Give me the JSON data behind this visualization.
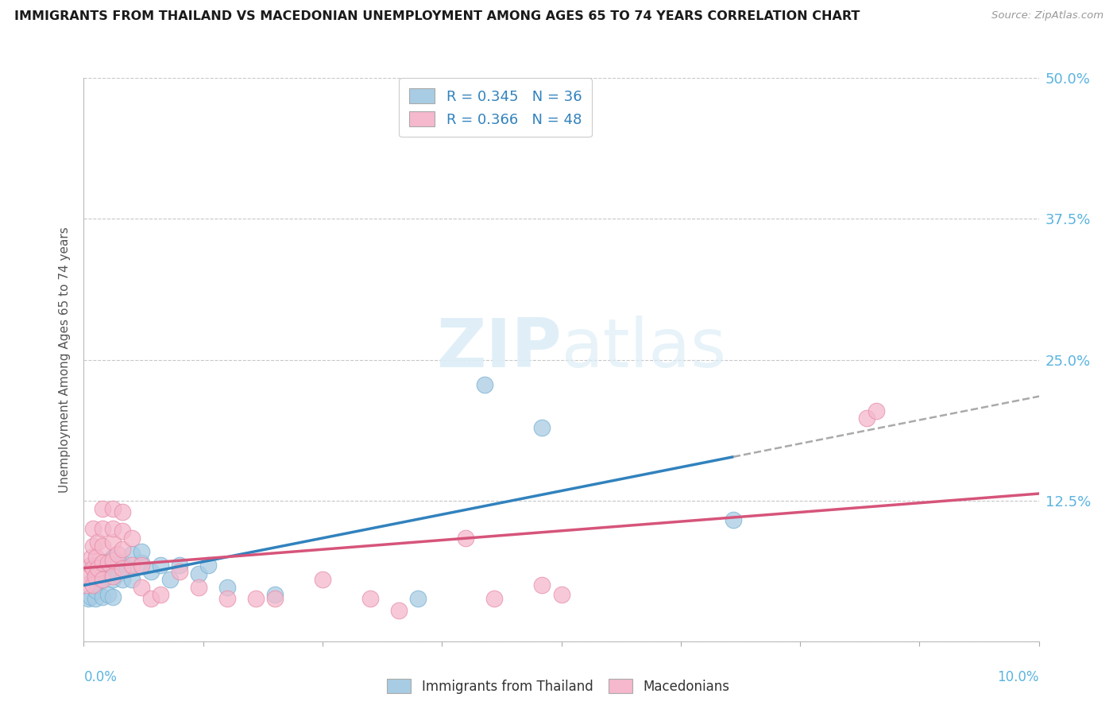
{
  "title": "IMMIGRANTS FROM THAILAND VS MACEDONIAN UNEMPLOYMENT AMONG AGES 65 TO 74 YEARS CORRELATION CHART",
  "source": "Source: ZipAtlas.com",
  "ylabel": "Unemployment Among Ages 65 to 74 years",
  "xlim": [
    0.0,
    0.1
  ],
  "ylim": [
    0.0,
    0.5
  ],
  "ytick_values": [
    0.0,
    0.125,
    0.25,
    0.375,
    0.5
  ],
  "ytick_labels_right": [
    "12.5%",
    "25.0%",
    "37.5%",
    "50.0%"
  ],
  "blue_color": "#a8cce4",
  "blue_edge": "#7ab3d3",
  "pink_color": "#f5b8cc",
  "pink_edge": "#e890a8",
  "blue_line_color": "#3182bd",
  "pink_line_color": "#d6547a",
  "blue_label": "Immigrants from Thailand",
  "pink_label": "Macedonians",
  "blue_R": "0.345",
  "blue_N": "36",
  "pink_R": "0.366",
  "pink_N": "48",
  "blue_scatter_x": [
    0.0005,
    0.0007,
    0.001,
    0.001,
    0.0012,
    0.0013,
    0.0015,
    0.0015,
    0.002,
    0.002,
    0.0022,
    0.0025,
    0.0025,
    0.003,
    0.003,
    0.003,
    0.0035,
    0.004,
    0.004,
    0.0045,
    0.005,
    0.005,
    0.006,
    0.006,
    0.007,
    0.008,
    0.009,
    0.01,
    0.012,
    0.013,
    0.015,
    0.02,
    0.035,
    0.042,
    0.048,
    0.068
  ],
  "blue_scatter_y": [
    0.038,
    0.04,
    0.055,
    0.068,
    0.038,
    0.045,
    0.05,
    0.06,
    0.04,
    0.055,
    0.065,
    0.042,
    0.058,
    0.04,
    0.055,
    0.075,
    0.06,
    0.055,
    0.07,
    0.065,
    0.055,
    0.078,
    0.07,
    0.08,
    0.062,
    0.068,
    0.055,
    0.068,
    0.06,
    0.068,
    0.048,
    0.042,
    0.038,
    0.228,
    0.19,
    0.108
  ],
  "pink_scatter_x": [
    0.0003,
    0.0005,
    0.0007,
    0.0008,
    0.001,
    0.001,
    0.001,
    0.001,
    0.0012,
    0.0013,
    0.0015,
    0.0015,
    0.002,
    0.002,
    0.002,
    0.002,
    0.002,
    0.0025,
    0.003,
    0.003,
    0.003,
    0.003,
    0.003,
    0.0035,
    0.004,
    0.004,
    0.004,
    0.004,
    0.005,
    0.005,
    0.006,
    0.006,
    0.007,
    0.008,
    0.01,
    0.012,
    0.015,
    0.018,
    0.02,
    0.025,
    0.03,
    0.033,
    0.04,
    0.043,
    0.048,
    0.05,
    0.082,
    0.083
  ],
  "pink_scatter_y": [
    0.05,
    0.058,
    0.068,
    0.075,
    0.05,
    0.065,
    0.085,
    0.1,
    0.058,
    0.075,
    0.065,
    0.088,
    0.055,
    0.07,
    0.085,
    0.1,
    0.118,
    0.07,
    0.058,
    0.072,
    0.088,
    0.1,
    0.118,
    0.078,
    0.065,
    0.082,
    0.098,
    0.115,
    0.068,
    0.092,
    0.068,
    0.048,
    0.038,
    0.042,
    0.062,
    0.048,
    0.038,
    0.038,
    0.038,
    0.055,
    0.038,
    0.028,
    0.092,
    0.038,
    0.05,
    0.042,
    0.198,
    0.205
  ]
}
